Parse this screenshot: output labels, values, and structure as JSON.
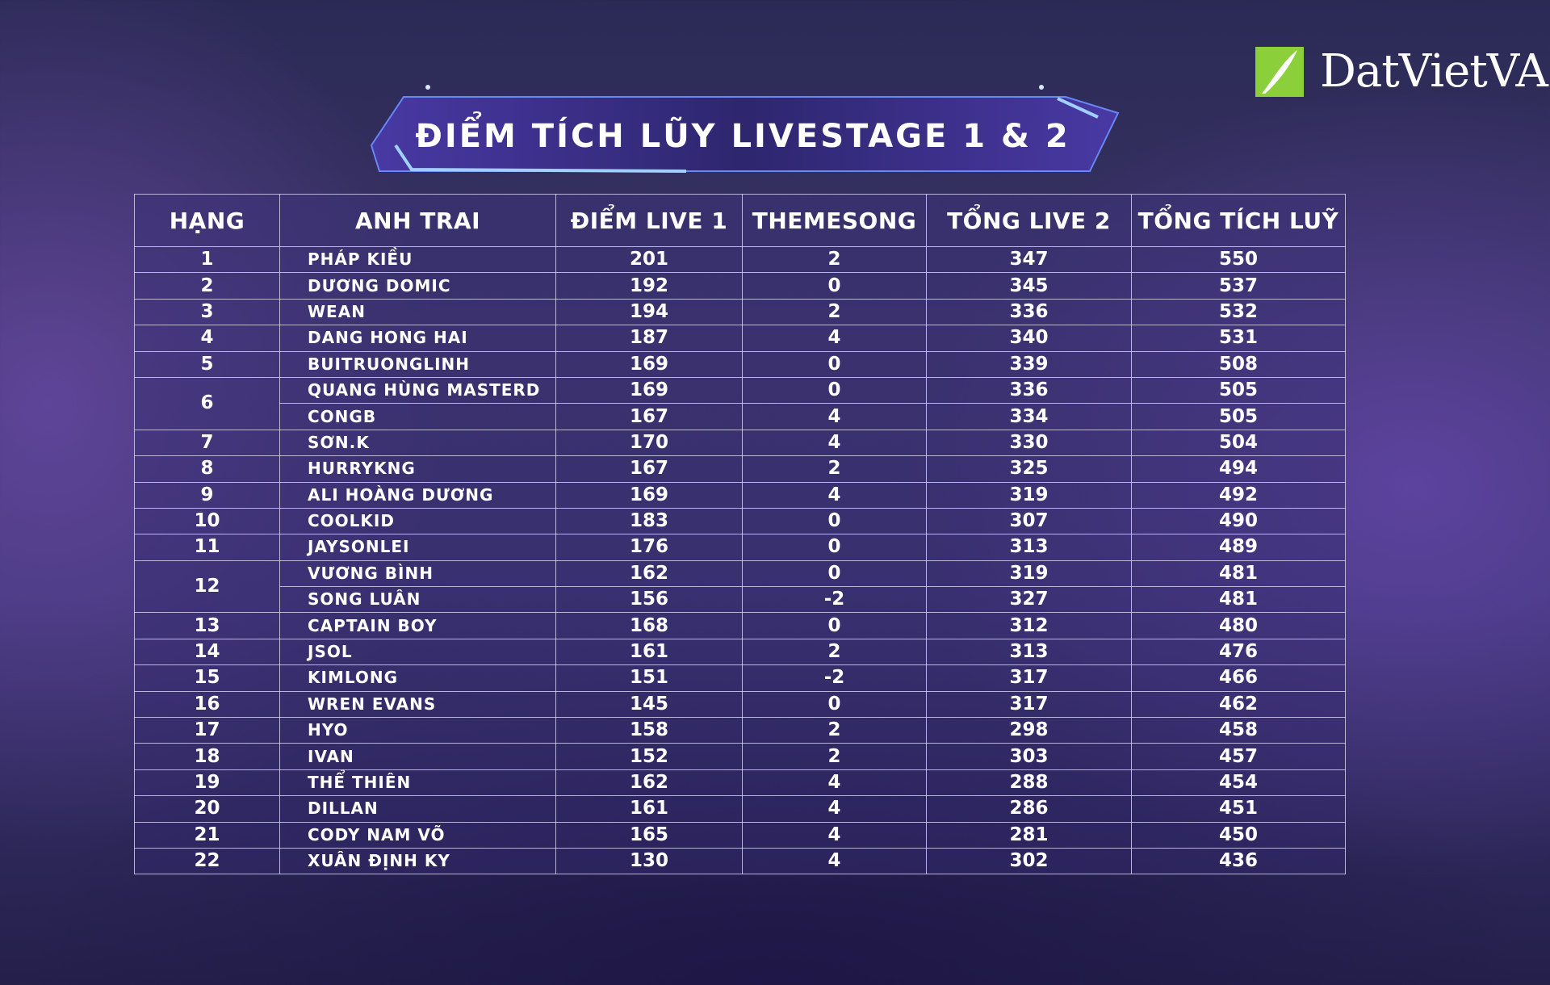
{
  "logo": {
    "text": "DatVietVAC",
    "icon": "leaf-logo-icon",
    "color": "#8bd03b"
  },
  "title": "ĐIỂM TÍCH LŨY LIVESTAGE 1 & 2",
  "table": {
    "headers": [
      "HẠNG",
      "ANH TRAI",
      "ĐIỂM LIVE 1",
      "THEMESONG",
      "TỔNG LIVE 2",
      "TỔNG TÍCH LUỸ"
    ],
    "rows": [
      {
        "rank": "1",
        "name": "PHÁP KIỀU",
        "live1": "201",
        "theme": "2",
        "live2": "347",
        "total": "550"
      },
      {
        "rank": "2",
        "name": "DƯƠNG DOMIC",
        "live1": "192",
        "theme": "0",
        "live2": "345",
        "total": "537"
      },
      {
        "rank": "3",
        "name": "WEAN",
        "live1": "194",
        "theme": "2",
        "live2": "336",
        "total": "532"
      },
      {
        "rank": "4",
        "name": "DANG HONG HAI",
        "live1": "187",
        "theme": "4",
        "live2": "340",
        "total": "531"
      },
      {
        "rank": "5",
        "name": "BUITRUONGLINH",
        "live1": "169",
        "theme": "0",
        "live2": "339",
        "total": "508"
      },
      {
        "rank": "6",
        "name": "QUANG HÙNG MASTERD",
        "live1": "169",
        "theme": "0",
        "live2": "336",
        "total": "505"
      },
      {
        "rank": "",
        "name": "CONGB",
        "live1": "167",
        "theme": "4",
        "live2": "334",
        "total": "505"
      },
      {
        "rank": "7",
        "name": "SƠN.K",
        "live1": "170",
        "theme": "4",
        "live2": "330",
        "total": "504"
      },
      {
        "rank": "8",
        "name": "HURRYKNG",
        "live1": "167",
        "theme": "2",
        "live2": "325",
        "total": "494"
      },
      {
        "rank": "9",
        "name": "ALI HOÀNG DƯƠNG",
        "live1": "169",
        "theme": "4",
        "live2": "319",
        "total": "492"
      },
      {
        "rank": "10",
        "name": "COOLKID",
        "live1": "183",
        "theme": "0",
        "live2": "307",
        "total": "490"
      },
      {
        "rank": "11",
        "name": "JAYSONLEI",
        "live1": "176",
        "theme": "0",
        "live2": "313",
        "total": "489"
      },
      {
        "rank": "12",
        "name": "VƯƠNG BÌNH",
        "live1": "162",
        "theme": "0",
        "live2": "319",
        "total": "481"
      },
      {
        "rank": "",
        "name": "SONG LUÂN",
        "live1": "156",
        "theme": "-2",
        "live2": "327",
        "total": "481"
      },
      {
        "rank": "13",
        "name": "CAPTAIN BOY",
        "live1": "168",
        "theme": "0",
        "live2": "312",
        "total": "480"
      },
      {
        "rank": "14",
        "name": "JSOL",
        "live1": "161",
        "theme": "2",
        "live2": "313",
        "total": "476"
      },
      {
        "rank": "15",
        "name": "KIMLONG",
        "live1": "151",
        "theme": "-2",
        "live2": "317",
        "total": "466"
      },
      {
        "rank": "16",
        "name": "WREN EVANS",
        "live1": "145",
        "theme": "0",
        "live2": "317",
        "total": "462"
      },
      {
        "rank": "17",
        "name": "HYO",
        "live1": "158",
        "theme": "2",
        "live2": "298",
        "total": "458"
      },
      {
        "rank": "18",
        "name": "IVAN",
        "live1": "152",
        "theme": "2",
        "live2": "303",
        "total": "457"
      },
      {
        "rank": "19",
        "name": "THỂ THIÊN",
        "live1": "162",
        "theme": "4",
        "live2": "288",
        "total": "454"
      },
      {
        "rank": "20",
        "name": "DILLAN",
        "live1": "161",
        "theme": "4",
        "live2": "286",
        "total": "451"
      },
      {
        "rank": "21",
        "name": "CODY NAM VÕ",
        "live1": "165",
        "theme": "4",
        "live2": "281",
        "total": "450"
      },
      {
        "rank": "22",
        "name": "XUÂN ĐỊNH KY",
        "live1": "130",
        "theme": "4",
        "live2": "302",
        "total": "436"
      }
    ]
  }
}
